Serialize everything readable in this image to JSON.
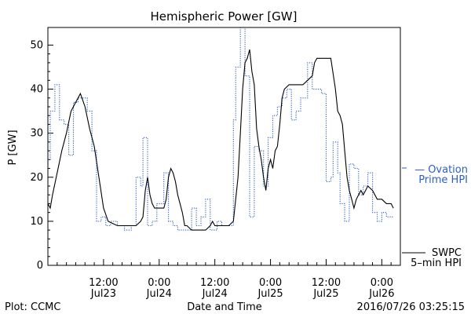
{
  "chart_data": {
    "type": "line",
    "title": "Hemispheric Power [GW]",
    "xlabel": "Date and Time",
    "ylabel": "P [GW]",
    "ylim": [
      0,
      54
    ],
    "xlim": [
      0,
      76
    ],
    "grid": false,
    "y_ticks": [
      0,
      10,
      20,
      30,
      40,
      50
    ],
    "x_ticks": [
      {
        "x": 12,
        "time": "12:00",
        "date": "Jul23"
      },
      {
        "x": 24,
        "time": "0:00",
        "date": "Jul24"
      },
      {
        "x": 36,
        "time": "12:00",
        "date": "Jul24"
      },
      {
        "x": 48,
        "time": "0:00",
        "date": "Jul25"
      },
      {
        "x": 60,
        "time": "12:00",
        "date": "Jul25"
      },
      {
        "x": 72,
        "time": "0:00",
        "date": "Jul26"
      }
    ],
    "series": [
      {
        "name": "SWPC 5-min HPI",
        "color": "#000000",
        "style": "solid",
        "points": [
          [
            0,
            14
          ],
          [
            0.5,
            13
          ],
          [
            1,
            16
          ],
          [
            2,
            21
          ],
          [
            3,
            26
          ],
          [
            4,
            30
          ],
          [
            5,
            35
          ],
          [
            6,
            37
          ],
          [
            7,
            39
          ],
          [
            8,
            36
          ],
          [
            9,
            31
          ],
          [
            10,
            27
          ],
          [
            11,
            20
          ],
          [
            12,
            13
          ],
          [
            13,
            10
          ],
          [
            14,
            9.5
          ],
          [
            15,
            9
          ],
          [
            16,
            9
          ],
          [
            17,
            9
          ],
          [
            18,
            9
          ],
          [
            19,
            9
          ],
          [
            20,
            10
          ],
          [
            20.5,
            11
          ],
          [
            21,
            17
          ],
          [
            21.5,
            20
          ],
          [
            22,
            16
          ],
          [
            22.5,
            14
          ],
          [
            23,
            13
          ],
          [
            24,
            13
          ],
          [
            25,
            13
          ],
          [
            25.5,
            15
          ],
          [
            26,
            20
          ],
          [
            26.5,
            22
          ],
          [
            27,
            21
          ],
          [
            27.5,
            19
          ],
          [
            28,
            16
          ],
          [
            29,
            12
          ],
          [
            29.5,
            9
          ],
          [
            30,
            9
          ],
          [
            31,
            8
          ],
          [
            32,
            8
          ],
          [
            33,
            8
          ],
          [
            34,
            8
          ],
          [
            35,
            9
          ],
          [
            35.5,
            10
          ],
          [
            36,
            9
          ],
          [
            37,
            9
          ],
          [
            38,
            9
          ],
          [
            39,
            9
          ],
          [
            40,
            10
          ],
          [
            41,
            20
          ],
          [
            41.5,
            30
          ],
          [
            42,
            40
          ],
          [
            42.5,
            46
          ],
          [
            43,
            47
          ],
          [
            43.5,
            49
          ],
          [
            44,
            44
          ],
          [
            44.5,
            41
          ],
          [
            45,
            31
          ],
          [
            45.5,
            27
          ],
          [
            46,
            24
          ],
          [
            46.5,
            20
          ],
          [
            47,
            17
          ],
          [
            47.5,
            22
          ],
          [
            48,
            24
          ],
          [
            48.5,
            22
          ],
          [
            49,
            26
          ],
          [
            49.5,
            27
          ],
          [
            50,
            32
          ],
          [
            50.5,
            38
          ],
          [
            51,
            40
          ],
          [
            52,
            41
          ],
          [
            53,
            41
          ],
          [
            54,
            41
          ],
          [
            55,
            41
          ],
          [
            56,
            42
          ],
          [
            57,
            43
          ],
          [
            57.5,
            46
          ],
          [
            58,
            47
          ],
          [
            59,
            47
          ],
          [
            60,
            47
          ],
          [
            61,
            47
          ],
          [
            62,
            40
          ],
          [
            62.5,
            35
          ],
          [
            63,
            34
          ],
          [
            63.5,
            32
          ],
          [
            64,
            26
          ],
          [
            64.5,
            20
          ],
          [
            65,
            17
          ],
          [
            65.5,
            15
          ],
          [
            66,
            13
          ],
          [
            66.5,
            15
          ],
          [
            67,
            16
          ],
          [
            67.5,
            17
          ],
          [
            68,
            16
          ],
          [
            68.5,
            17
          ],
          [
            69,
            18
          ],
          [
            70,
            17
          ],
          [
            71,
            15
          ],
          [
            72,
            15
          ],
          [
            73,
            14
          ],
          [
            74,
            14
          ],
          [
            74.5,
            13
          ]
        ]
      },
      {
        "name": "Ovation Prime HPI",
        "color": "#2b5fc7",
        "style": "dotted",
        "points": [
          [
            0,
            24
          ],
          [
            0.5,
            24
          ],
          [
            0.5,
            35
          ],
          [
            1.5,
            35
          ],
          [
            1.5,
            41
          ],
          [
            2.5,
            41
          ],
          [
            2.5,
            33
          ],
          [
            3.5,
            33
          ],
          [
            3.5,
            32
          ],
          [
            4.5,
            32
          ],
          [
            4.5,
            25
          ],
          [
            5.5,
            25
          ],
          [
            5.5,
            37
          ],
          [
            6.5,
            37
          ],
          [
            6.5,
            38
          ],
          [
            8.5,
            38
          ],
          [
            8.5,
            35
          ],
          [
            9.5,
            35
          ],
          [
            9.5,
            26
          ],
          [
            10.5,
            26
          ],
          [
            10.5,
            10
          ],
          [
            11.5,
            10
          ],
          [
            11.5,
            11
          ],
          [
            12.5,
            11
          ],
          [
            12.5,
            9
          ],
          [
            13.5,
            9
          ],
          [
            13.5,
            10
          ],
          [
            15,
            10
          ],
          [
            15,
            9
          ],
          [
            16.5,
            9
          ],
          [
            16.5,
            8
          ],
          [
            18,
            8
          ],
          [
            18,
            9
          ],
          [
            19,
            9
          ],
          [
            19,
            20
          ],
          [
            20,
            20
          ],
          [
            20,
            18
          ],
          [
            20.5,
            18
          ],
          [
            20.5,
            29
          ],
          [
            21.5,
            29
          ],
          [
            21.5,
            9
          ],
          [
            22.5,
            9
          ],
          [
            22.5,
            10
          ],
          [
            23.5,
            10
          ],
          [
            23.5,
            14
          ],
          [
            25,
            14
          ],
          [
            25,
            21
          ],
          [
            26,
            21
          ],
          [
            26,
            10
          ],
          [
            27,
            10
          ],
          [
            27,
            9
          ],
          [
            28,
            9
          ],
          [
            28,
            8
          ],
          [
            31,
            8
          ],
          [
            31,
            13
          ],
          [
            32,
            13
          ],
          [
            32,
            9
          ],
          [
            33,
            9
          ],
          [
            33,
            11
          ],
          [
            34,
            11
          ],
          [
            34,
            15
          ],
          [
            35,
            15
          ],
          [
            35,
            8
          ],
          [
            36.5,
            8
          ],
          [
            36.5,
            10
          ],
          [
            37.5,
            10
          ],
          [
            37.5,
            9
          ],
          [
            40,
            9
          ],
          [
            40,
            33
          ],
          [
            40.5,
            33
          ],
          [
            40.5,
            45
          ],
          [
            41.5,
            45
          ],
          [
            41.5,
            54
          ],
          [
            42.5,
            54
          ],
          [
            42.5,
            43
          ],
          [
            43.5,
            43
          ],
          [
            43.5,
            11
          ],
          [
            44.5,
            11
          ],
          [
            44.5,
            27
          ],
          [
            45.5,
            27
          ],
          [
            45.5,
            26
          ],
          [
            46.5,
            26
          ],
          [
            46.5,
            18
          ],
          [
            47.5,
            18
          ],
          [
            47.5,
            29
          ],
          [
            48.5,
            29
          ],
          [
            48.5,
            34
          ],
          [
            49.5,
            34
          ],
          [
            49.5,
            36
          ],
          [
            50.5,
            36
          ],
          [
            50.5,
            38
          ],
          [
            51.5,
            38
          ],
          [
            51.5,
            40
          ],
          [
            52.5,
            40
          ],
          [
            52.5,
            33
          ],
          [
            53.5,
            33
          ],
          [
            53.5,
            35
          ],
          [
            54.5,
            35
          ],
          [
            54.5,
            38
          ],
          [
            56,
            38
          ],
          [
            56,
            46
          ],
          [
            57,
            46
          ],
          [
            57,
            40
          ],
          [
            59,
            40
          ],
          [
            59,
            39
          ],
          [
            60,
            39
          ],
          [
            60,
            19
          ],
          [
            61,
            19
          ],
          [
            61,
            20
          ],
          [
            61.5,
            20
          ],
          [
            61.5,
            28
          ],
          [
            62.5,
            28
          ],
          [
            62.5,
            21
          ],
          [
            63,
            21
          ],
          [
            63,
            14
          ],
          [
            64,
            14
          ],
          [
            64,
            10
          ],
          [
            65,
            10
          ],
          [
            65,
            23
          ],
          [
            66,
            23
          ],
          [
            66,
            22
          ],
          [
            67,
            22
          ],
          [
            67,
            16
          ],
          [
            68,
            16
          ],
          [
            68,
            18
          ],
          [
            69,
            18
          ],
          [
            69,
            21
          ],
          [
            70,
            21
          ],
          [
            70,
            12
          ],
          [
            71,
            12
          ],
          [
            71,
            10
          ],
          [
            72,
            10
          ],
          [
            72,
            12
          ],
          [
            73,
            12
          ],
          [
            73,
            11
          ],
          [
            74.5,
            11
          ]
        ]
      }
    ],
    "legend": [
      {
        "text_line1": "— Ovation",
        "text_line2": "Prime HPI",
        "color": "#2b5fc7"
      },
      {
        "text_line1": "SWPC",
        "text_line2": "5–min HPI",
        "color": "#000000"
      }
    ]
  },
  "footer": {
    "left": "Plot: CCMC",
    "center": "Date and Time",
    "right": "2016/07/26 03:25:15"
  }
}
